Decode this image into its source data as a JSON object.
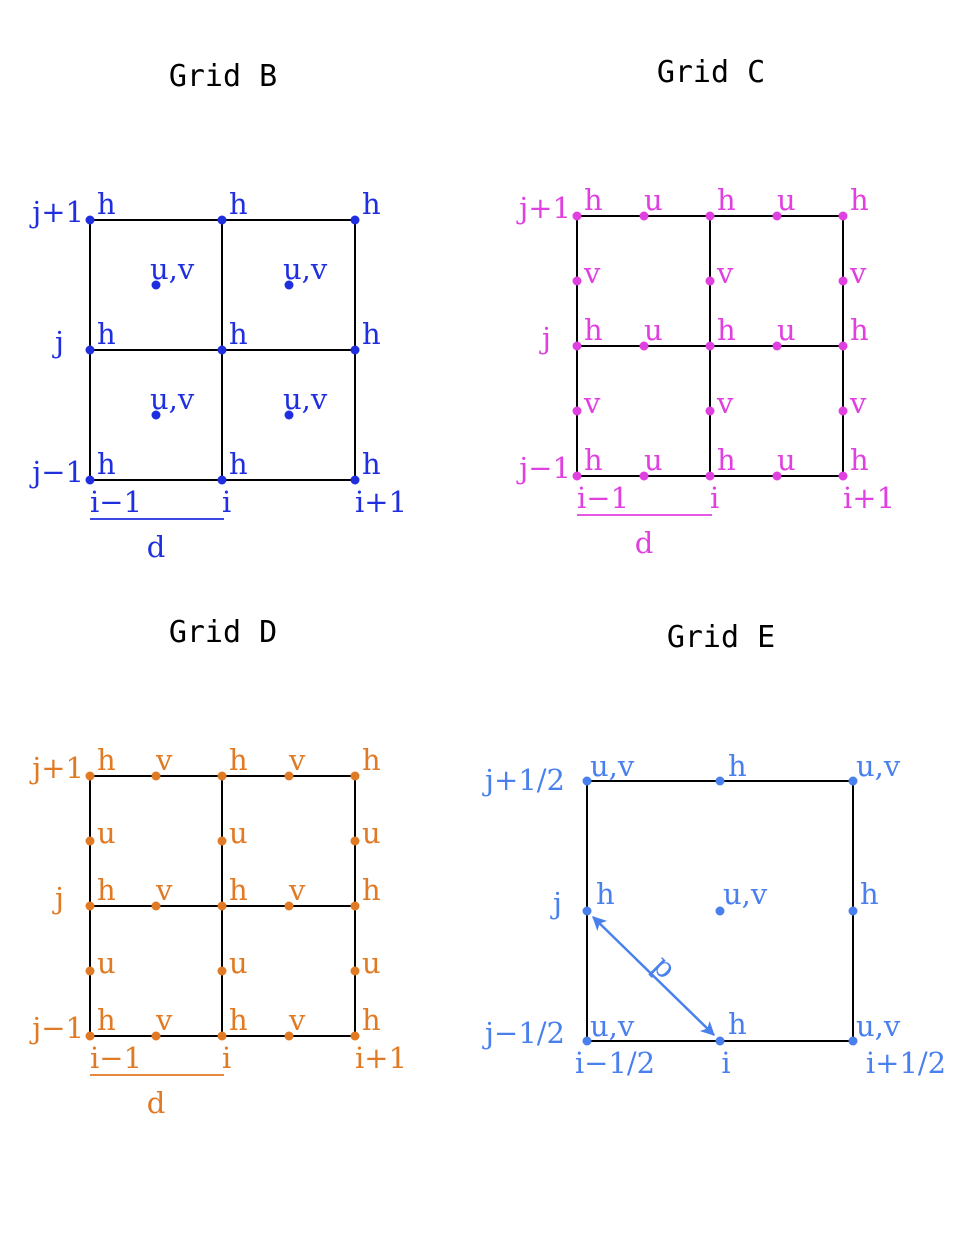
{
  "colors": {
    "gridB": "#1f2fe0",
    "gridC": "#e040e0",
    "gridD": "#e07a24",
    "gridE": "#4a80ee",
    "lines": "#000000"
  },
  "gridB": {
    "title": "Grid B",
    "node_label": "h",
    "center_label": "u,v",
    "row_labels": [
      "j+1",
      "j",
      "j−1"
    ],
    "col_labels": [
      "i−1",
      "i",
      "i+1"
    ],
    "spacing_label": "d"
  },
  "gridC": {
    "title": "Grid C",
    "node_label": "h",
    "hmid_label": "u",
    "vmid_label": "v",
    "row_labels": [
      "j+1",
      "j",
      "j−1"
    ],
    "col_labels": [
      "i−1",
      "i",
      "i+1"
    ],
    "spacing_label": "d"
  },
  "gridD": {
    "title": "Grid D",
    "node_label": "h",
    "hmid_label": "v",
    "vmid_label": "u",
    "row_labels": [
      "j+1",
      "j",
      "j−1"
    ],
    "col_labels": [
      "i−1",
      "i",
      "i+1"
    ],
    "spacing_label": "d"
  },
  "gridE": {
    "title": "Grid E",
    "corner_label": "u,v",
    "mid_label": "h",
    "center_label": "u,v",
    "row_labels": [
      "j+1/2",
      "j",
      "j−1/2"
    ],
    "col_labels": [
      "i−1/2",
      "i",
      "i+1/2"
    ],
    "spacing_label": "d"
  }
}
